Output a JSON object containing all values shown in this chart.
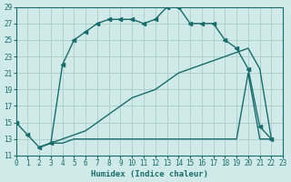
{
  "xlabel": "Humidex (Indice chaleur)",
  "bg_color": "#d0eaea",
  "grid_color": "#b0d0d0",
  "line_color": "#1a6b6b",
  "xlim": [
    0,
    23
  ],
  "ylim": [
    11,
    29
  ],
  "xticks": [
    0,
    1,
    2,
    3,
    4,
    5,
    6,
    7,
    8,
    9,
    10,
    11,
    12,
    13,
    14,
    15,
    16,
    17,
    18,
    19,
    20,
    21,
    22,
    23
  ],
  "yticks": [
    11,
    13,
    15,
    17,
    19,
    21,
    23,
    25,
    27,
    29
  ],
  "line1_x": [
    0,
    1,
    2,
    3,
    4,
    5,
    6,
    7,
    8,
    9,
    10,
    11,
    12,
    13,
    14,
    15,
    16,
    17,
    18,
    19,
    20,
    21,
    22
  ],
  "line1_y": [
    15,
    13.5,
    12,
    12.5,
    22,
    25,
    26,
    27,
    27.5,
    27.5,
    27.5,
    27,
    27.5,
    29,
    29,
    27,
    27,
    27,
    25,
    24,
    21.5,
    14.5,
    13
  ],
  "line2_x": [
    2,
    3,
    4,
    5,
    6,
    7,
    8,
    9,
    10,
    11,
    12,
    13,
    14,
    15,
    16,
    17,
    18,
    19,
    20,
    21,
    22
  ],
  "line2_y": [
    12,
    12.5,
    12.5,
    13,
    13,
    13,
    13,
    13,
    13,
    13,
    13,
    13,
    13,
    13,
    13,
    13,
    13,
    13,
    21,
    13,
    13
  ],
  "line3_x": [
    2,
    3,
    4,
    5,
    6,
    7,
    8,
    9,
    10,
    11,
    12,
    13,
    14,
    15,
    16,
    17,
    18,
    19,
    20,
    21,
    22
  ],
  "line3_y": [
    12,
    12.5,
    13,
    13.5,
    14,
    15,
    16,
    17,
    18,
    18.5,
    19,
    20,
    21,
    21.5,
    22,
    22.5,
    23,
    23.5,
    24,
    21.5,
    13
  ]
}
